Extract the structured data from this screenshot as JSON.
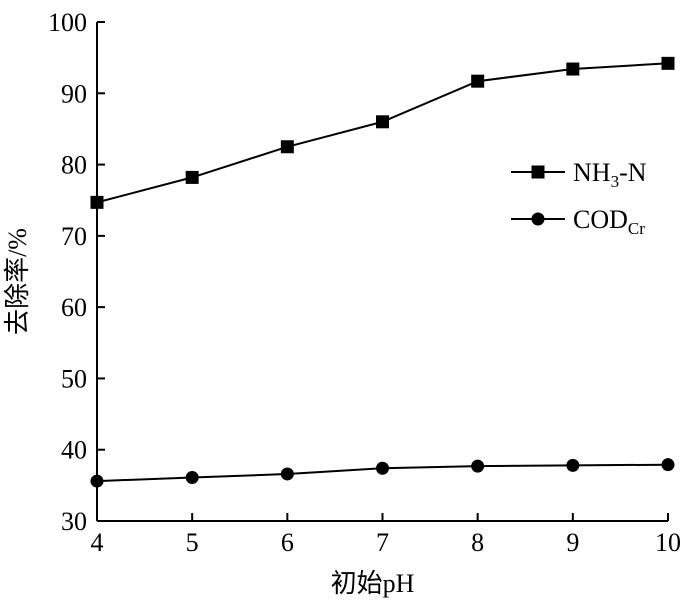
{
  "chart_data": {
    "type": "line",
    "title": "",
    "xlabel": "初始pH",
    "ylabel": "去除率/%",
    "x": [
      4,
      5,
      6,
      7,
      8,
      9,
      10
    ],
    "xlim": [
      4,
      10
    ],
    "ylim": [
      30,
      100
    ],
    "xticks": [
      "4",
      "5",
      "6",
      "7",
      "8",
      "9",
      "10"
    ],
    "yticks": [
      "30",
      "40",
      "50",
      "60",
      "70",
      "80",
      "90",
      "100"
    ],
    "grid": false,
    "legend_position": "right",
    "series": [
      {
        "name": "NH3-N",
        "legend_main": "NH",
        "legend_sub": "3",
        "legend_tail": "-N",
        "marker": "square",
        "values": [
          74.7,
          78.2,
          82.5,
          86.0,
          91.7,
          93.4,
          94.2
        ]
      },
      {
        "name": "CODCr",
        "legend_main": "COD",
        "legend_sub": "Cr",
        "legend_tail": "",
        "marker": "circle",
        "values": [
          35.6,
          36.1,
          36.6,
          37.4,
          37.7,
          37.8,
          37.9
        ]
      }
    ]
  }
}
